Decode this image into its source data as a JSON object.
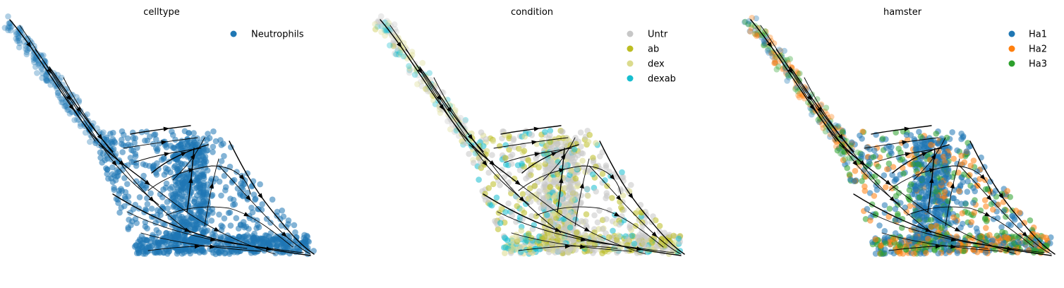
{
  "chart_data": [
    {
      "type": "scatter",
      "subtype": "embedding-with-velocity-streamlines",
      "title": "celltype",
      "xlabel": "",
      "ylabel": "",
      "axes_visible": false,
      "grid": false,
      "legend_placement": "top-right",
      "legend": [
        {
          "name": "Neutrophils",
          "color": "#1f77b4"
        }
      ],
      "series": [
        {
          "name": "Neutrophils",
          "color": "#1f77b4",
          "share": 1.0
        }
      ],
      "streamlines": true
    },
    {
      "type": "scatter",
      "subtype": "embedding-with-velocity-streamlines",
      "title": "condition",
      "xlabel": "",
      "ylabel": "",
      "axes_visible": false,
      "grid": false,
      "legend_placement": "top-right",
      "legend": [
        {
          "name": "Untr",
          "color": "#c7c7c7"
        },
        {
          "name": "ab",
          "color": "#bcbd22"
        },
        {
          "name": "dex",
          "color": "#dbdb8d"
        },
        {
          "name": "dexab",
          "color": "#17becf"
        }
      ],
      "series": [
        {
          "name": "Untr",
          "color": "#c7c7c7",
          "share": 0.55
        },
        {
          "name": "ab",
          "color": "#bcbd22",
          "share": 0.18
        },
        {
          "name": "dex",
          "color": "#dbdb8d",
          "share": 0.17
        },
        {
          "name": "dexab",
          "color": "#17becf",
          "share": 0.1
        }
      ],
      "streamlines": true
    },
    {
      "type": "scatter",
      "subtype": "embedding-with-velocity-streamlines",
      "title": "hamster",
      "xlabel": "",
      "ylabel": "",
      "axes_visible": false,
      "grid": false,
      "legend_placement": "top-right",
      "legend": [
        {
          "name": "Ha1",
          "color": "#1f77b4"
        },
        {
          "name": "Ha2",
          "color": "#ff7f0e"
        },
        {
          "name": "Ha3",
          "color": "#2ca02c"
        }
      ],
      "series": [
        {
          "name": "Ha1",
          "color": "#1f77b4",
          "share": 0.45
        },
        {
          "name": "Ha2",
          "color": "#ff7f0e",
          "share": 0.25
        },
        {
          "name": "Ha3",
          "color": "#2ca02c",
          "share": 0.3
        }
      ],
      "streamlines": true
    }
  ]
}
